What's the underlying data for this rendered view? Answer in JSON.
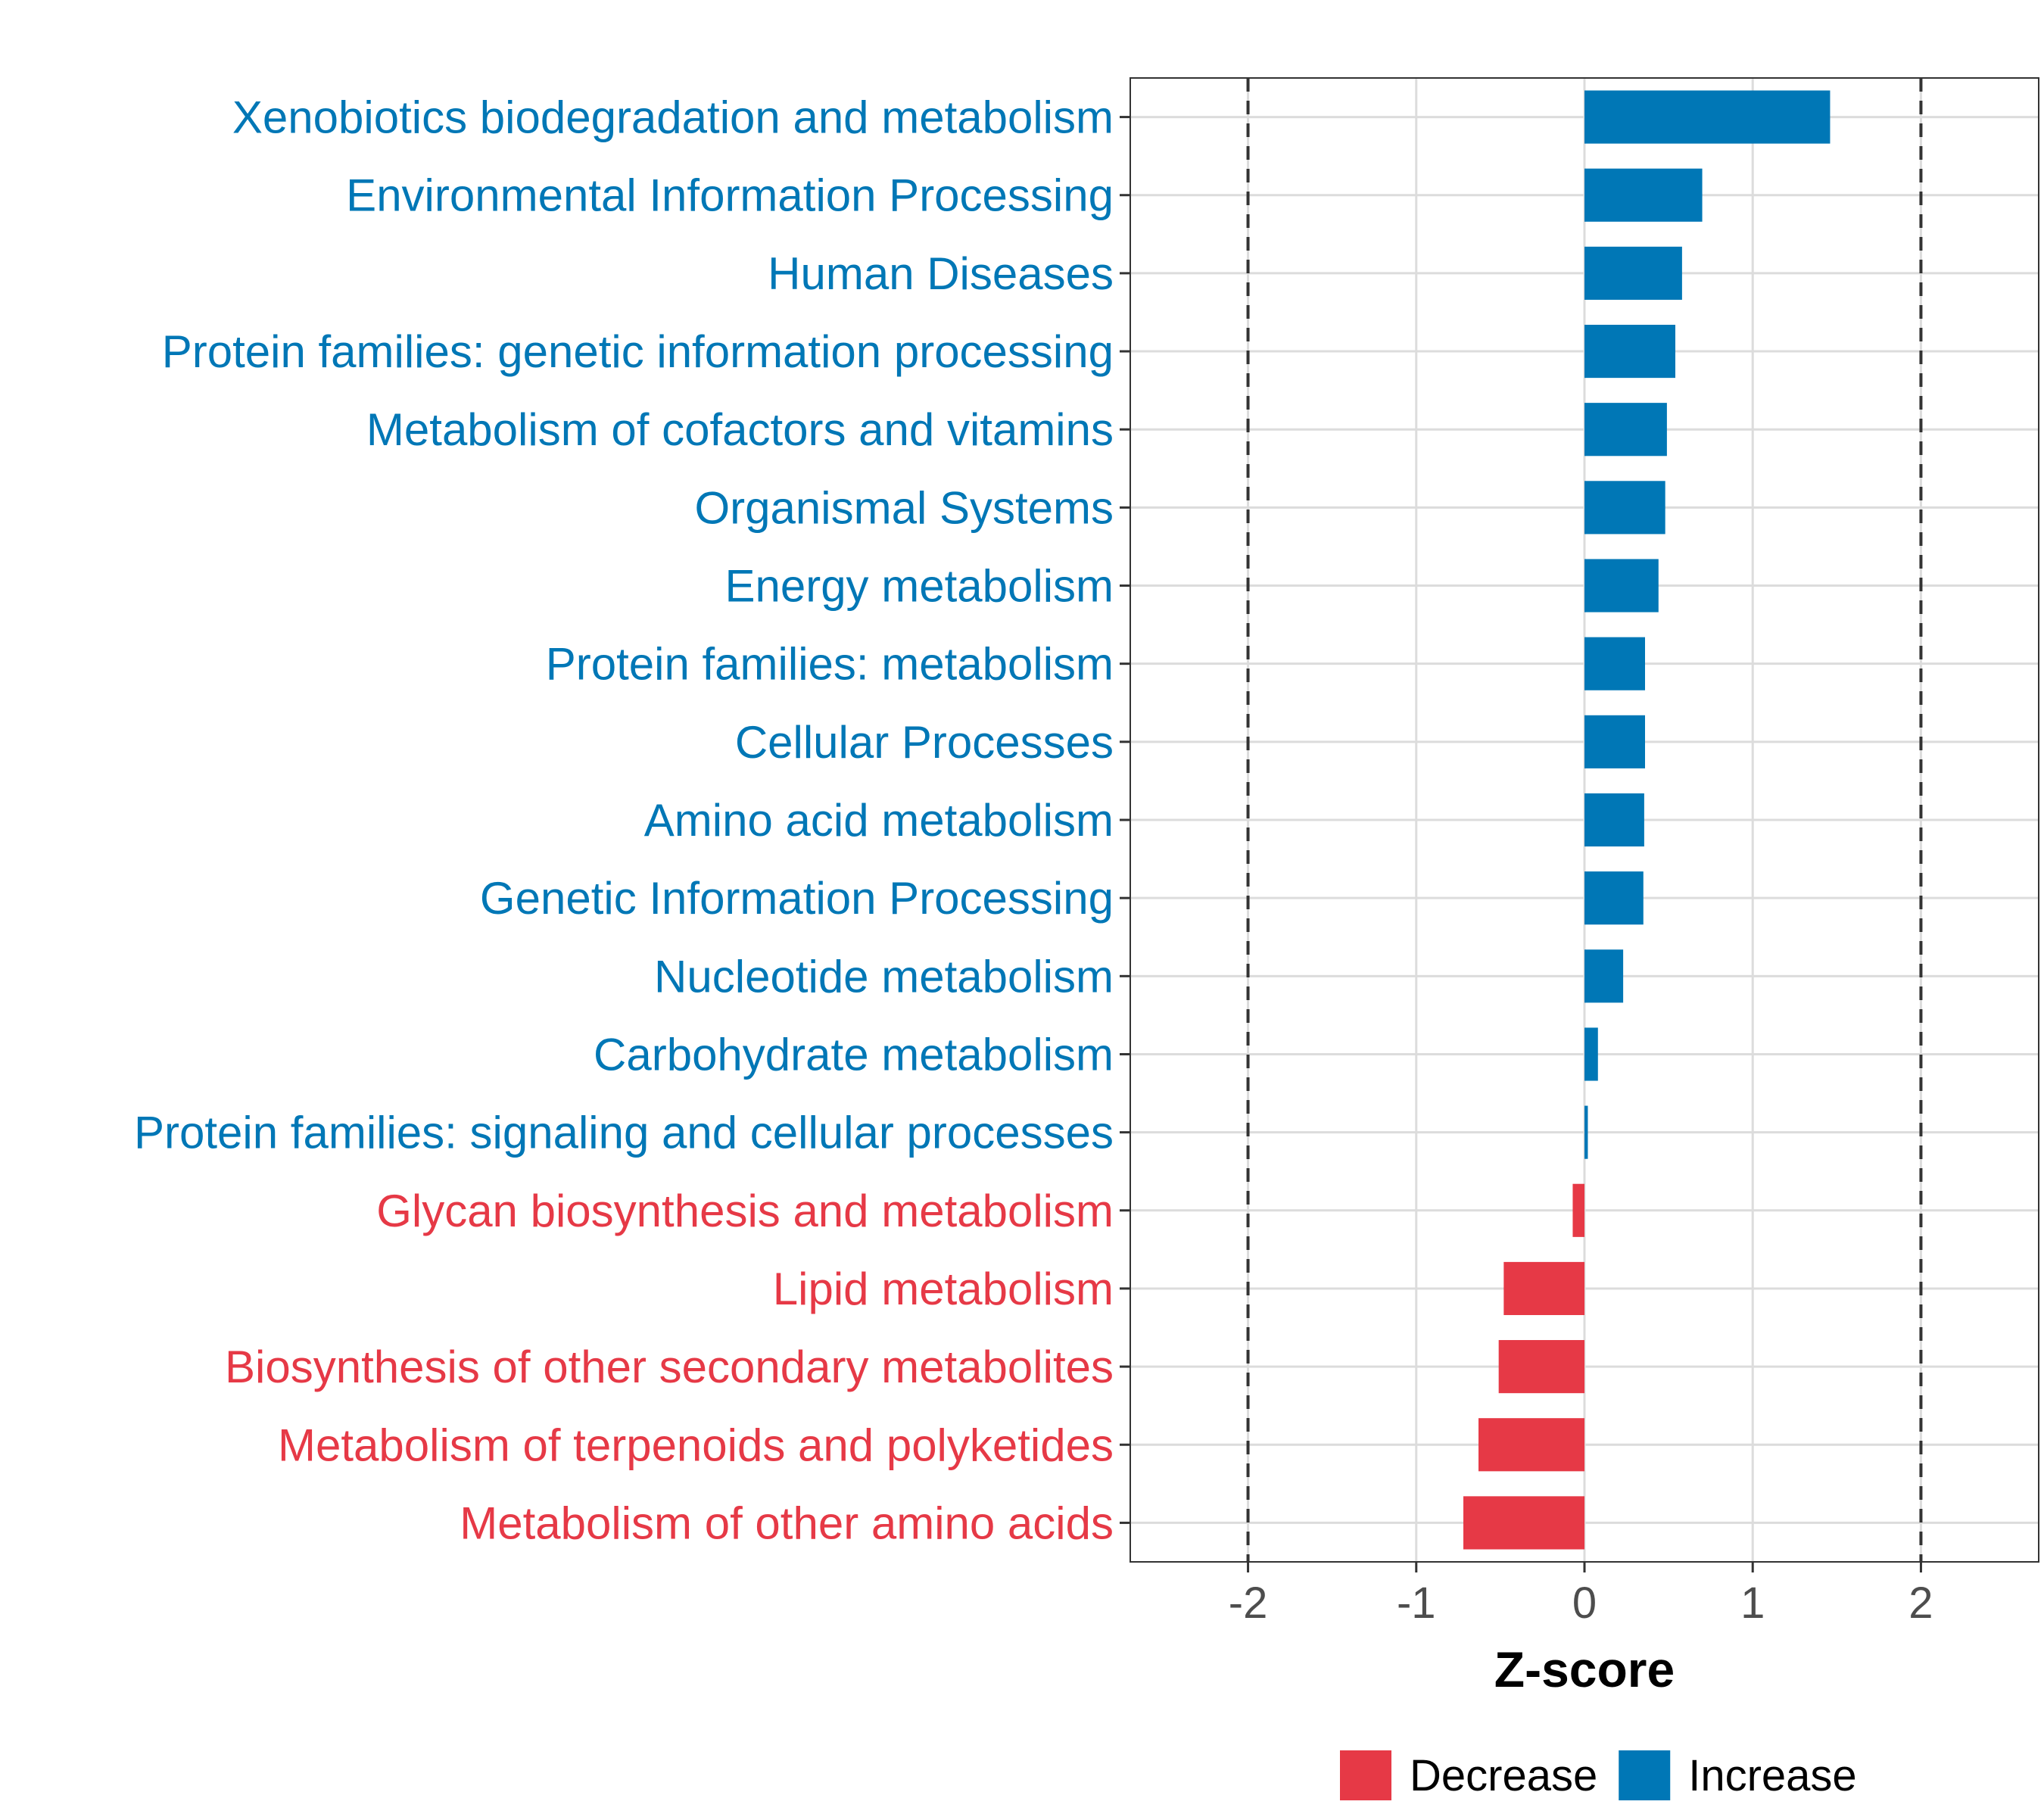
{
  "chart_data": {
    "type": "bar",
    "orientation": "horizontal",
    "title": "",
    "xlabel": "Z-score",
    "ylabel": "",
    "xlim": [
      -2.7,
      2.7
    ],
    "xticks": [
      -2,
      -1,
      0,
      1,
      2
    ],
    "xtick_labels": [
      "-2",
      "-1",
      "0",
      "1",
      "2"
    ],
    "reference_lines": [
      -2,
      2
    ],
    "grid": true,
    "categories": [
      "Xenobiotics biodegradation and metabolism",
      "Environmental Information Processing",
      "Human Diseases",
      "Protein families: genetic information processing",
      "Metabolism of cofactors and vitamins",
      "Organismal Systems",
      "Energy metabolism",
      "Protein families: metabolism",
      "Cellular Processes",
      "Amino acid metabolism",
      "Genetic Information Processing",
      "Nucleotide metabolism",
      "Carbohydrate metabolism",
      "Protein families: signaling and cellular processes",
      "Glycan biosynthesis and metabolism",
      "Lipid metabolism",
      "Biosynthesis of other secondary metabolites",
      "Metabolism of terpenoids and polyketides",
      "Metabolism of other amino acids"
    ],
    "values": [
      1.46,
      0.7,
      0.58,
      0.54,
      0.49,
      0.48,
      0.44,
      0.36,
      0.36,
      0.355,
      0.35,
      0.23,
      0.08,
      0.02,
      -0.07,
      -0.48,
      -0.51,
      -0.63,
      -0.72
    ],
    "groups": [
      "Increase",
      "Increase",
      "Increase",
      "Increase",
      "Increase",
      "Increase",
      "Increase",
      "Increase",
      "Increase",
      "Increase",
      "Increase",
      "Increase",
      "Increase",
      "Increase",
      "Decrease",
      "Decrease",
      "Decrease",
      "Decrease",
      "Decrease"
    ],
    "legend": {
      "position": "bottom",
      "entries": [
        {
          "name": "Decrease",
          "color": "#e63946"
        },
        {
          "name": "Increase",
          "color": "#0077b6"
        }
      ]
    }
  },
  "colors": {
    "Decrease": "#e63946",
    "Increase": "#0077b6"
  }
}
